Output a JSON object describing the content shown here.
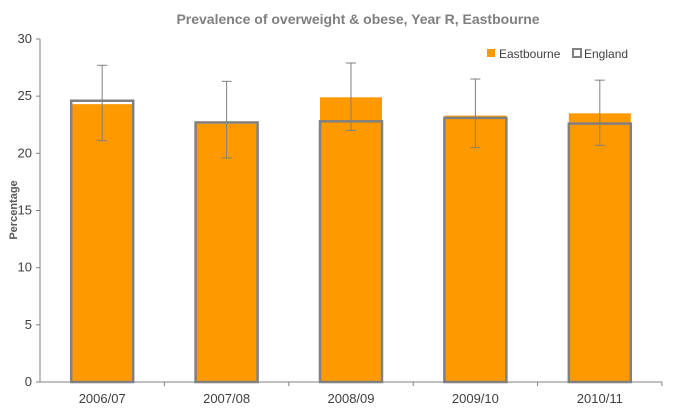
{
  "chart_data": {
    "type": "bar",
    "title": "Prevalence of overweight & obese, Year R, Eastbourne",
    "ylabel": "Percentage",
    "xlabel": "",
    "categories": [
      "2006/07",
      "2007/08",
      "2008/09",
      "2009/10",
      "2010/11"
    ],
    "ylim": [
      0,
      30
    ],
    "yticks": [
      "0",
      "5",
      "10",
      "15",
      "20",
      "25",
      "30"
    ],
    "series": [
      {
        "name": "Eastbourne",
        "values": [
          24.3,
          22.6,
          24.9,
          23.3,
          23.5
        ],
        "error_low": [
          21.1,
          19.6,
          22.0,
          20.5,
          20.7
        ],
        "error_high": [
          27.7,
          26.3,
          27.9,
          26.5,
          26.4
        ],
        "color": "#ff9900"
      },
      {
        "name": "England",
        "values": [
          24.6,
          22.7,
          22.8,
          23.1,
          22.6
        ],
        "color": "#808080"
      }
    ],
    "grid": false,
    "legend": "top-right"
  }
}
